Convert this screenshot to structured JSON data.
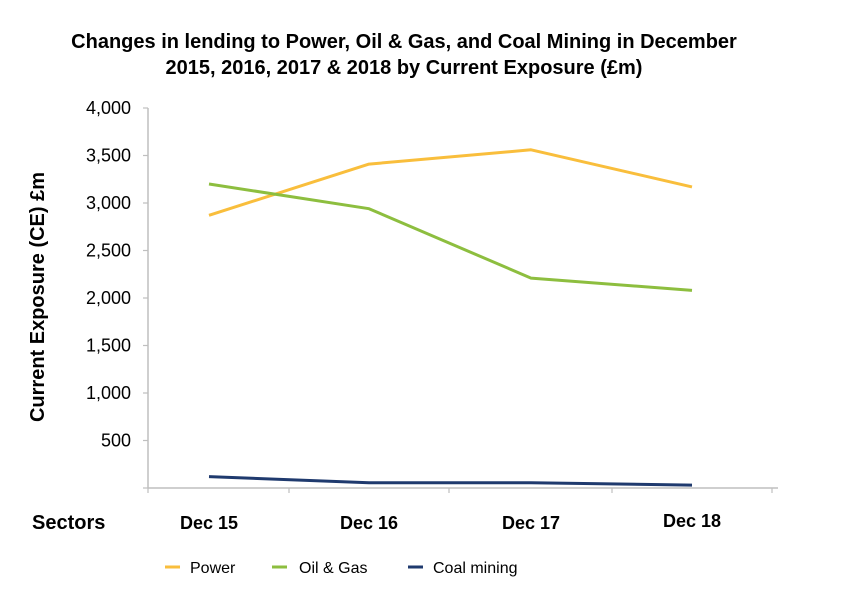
{
  "chart_data": {
    "type": "line",
    "title_lines": [
      "Changes in lending to Power, Oil & Gas, and Coal Mining in December",
      "2015, 2016, 2017 & 2018 by Current Exposure (£m)"
    ],
    "ylabel": "Current Exposure (CE) £m",
    "xlabel": "Sectors",
    "categories": [
      "Dec 15",
      "Dec 16",
      "Dec 17",
      "Dec 18"
    ],
    "ylim": [
      0,
      4000
    ],
    "yticks": [
      500,
      1000,
      1500,
      2000,
      2500,
      3000,
      3500,
      4000
    ],
    "ytick_labels": [
      "500",
      "1,000",
      "1,500",
      "2,000",
      "2,500",
      "3,000",
      "3,500",
      "4,000"
    ],
    "grid": false,
    "legend_position": "bottom-left",
    "series": [
      {
        "name": "Power",
        "color": "#F9BE3C",
        "values": [
          2870,
          3410,
          3560,
          3170
        ]
      },
      {
        "name": "Oil & Gas",
        "color": "#8DBE3F",
        "values": [
          3200,
          2940,
          2210,
          2080
        ]
      },
      {
        "name": "Coal mining",
        "color": "#1F3A6E",
        "values": [
          120,
          55,
          55,
          30
        ]
      }
    ]
  }
}
